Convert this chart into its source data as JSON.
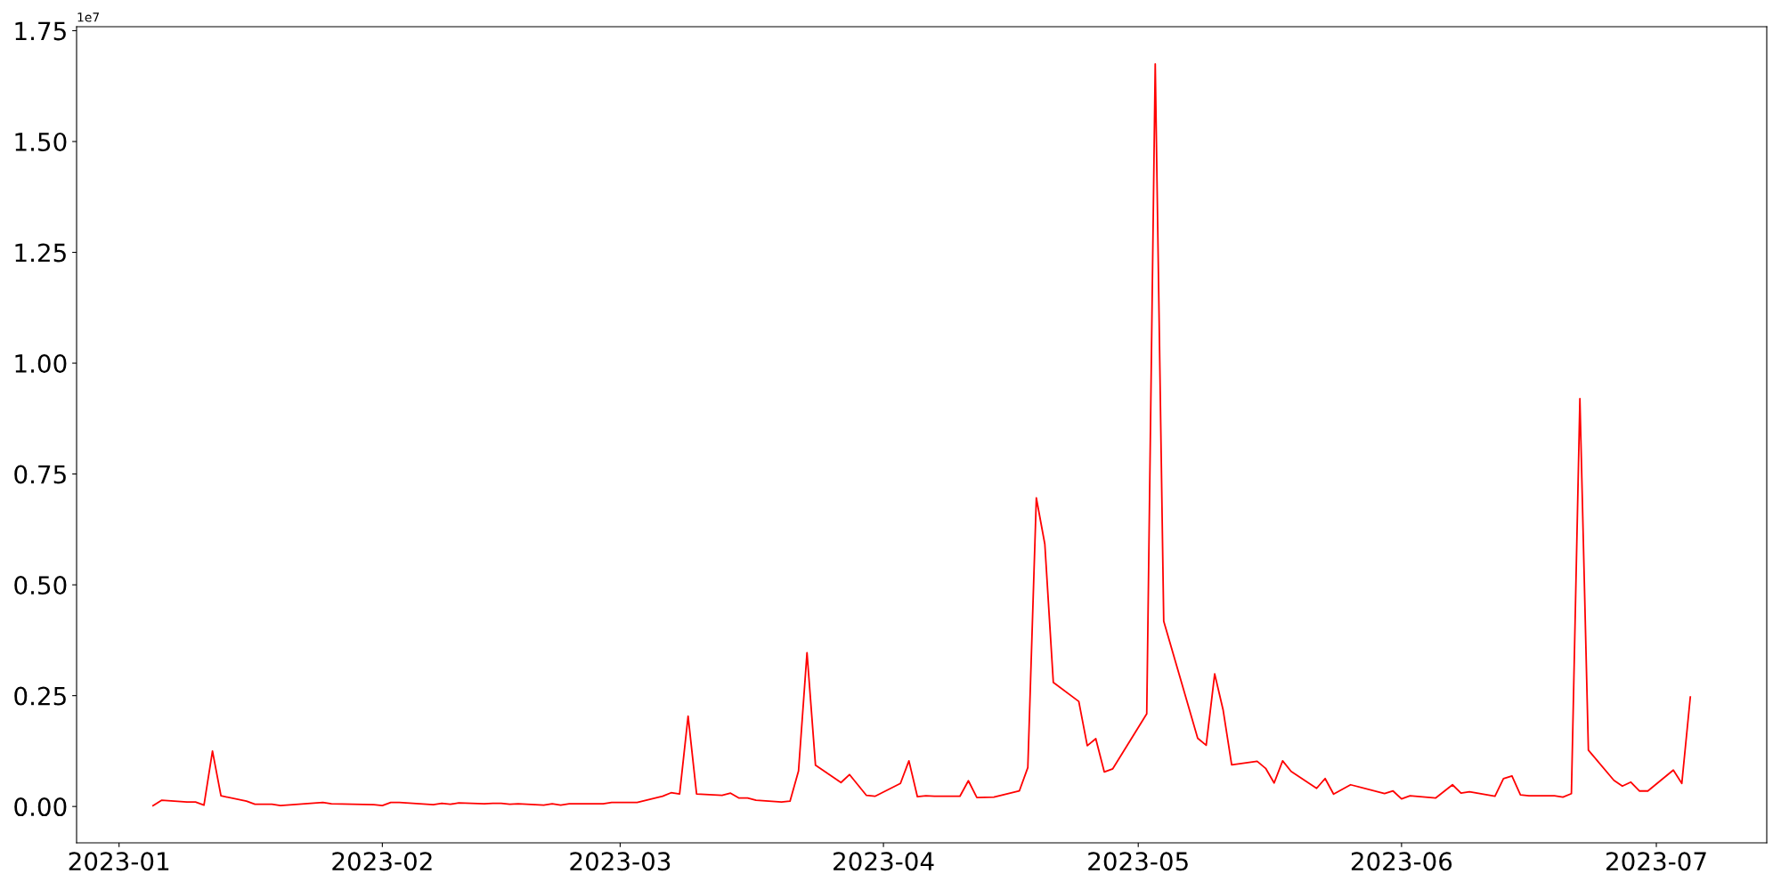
{
  "chart_data": {
    "type": "line",
    "x": [
      "2023-01-05",
      "2023-01-06",
      "2023-01-09",
      "2023-01-10",
      "2023-01-11",
      "2023-01-12",
      "2023-01-13",
      "2023-01-16",
      "2023-01-17",
      "2023-01-19",
      "2023-01-20",
      "2023-01-25",
      "2023-01-26",
      "2023-01-31",
      "2023-02-01",
      "2023-02-02",
      "2023-02-03",
      "2023-02-07",
      "2023-02-08",
      "2023-02-09",
      "2023-02-10",
      "2023-02-13",
      "2023-02-14",
      "2023-02-15",
      "2023-02-16",
      "2023-02-17",
      "2023-02-20",
      "2023-02-21",
      "2023-02-22",
      "2023-02-23",
      "2023-02-24",
      "2023-02-27",
      "2023-02-28",
      "2023-03-03",
      "2023-03-06",
      "2023-03-07",
      "2023-03-08",
      "2023-03-09",
      "2023-03-10",
      "2023-03-13",
      "2023-03-14",
      "2023-03-15",
      "2023-03-16",
      "2023-03-17",
      "2023-03-20",
      "2023-03-21",
      "2023-03-22",
      "2023-03-23",
      "2023-03-24",
      "2023-03-27",
      "2023-03-28",
      "2023-03-30",
      "2023-03-31",
      "2023-04-03",
      "2023-04-04",
      "2023-04-05",
      "2023-04-06",
      "2023-04-07",
      "2023-04-10",
      "2023-04-11",
      "2023-04-12",
      "2023-04-14",
      "2023-04-17",
      "2023-04-18",
      "2023-04-19",
      "2023-04-20",
      "2023-04-21",
      "2023-04-24",
      "2023-04-25",
      "2023-04-26",
      "2023-04-27",
      "2023-04-28",
      "2023-05-02",
      "2023-05-03",
      "2023-05-04",
      "2023-05-08",
      "2023-05-09",
      "2023-05-10",
      "2023-05-11",
      "2023-05-12",
      "2023-05-15",
      "2023-05-16",
      "2023-05-17",
      "2023-05-18",
      "2023-05-19",
      "2023-05-22",
      "2023-05-23",
      "2023-05-24",
      "2023-05-26",
      "2023-05-30",
      "2023-05-31",
      "2023-06-01",
      "2023-06-02",
      "2023-06-05",
      "2023-06-07",
      "2023-06-08",
      "2023-06-09",
      "2023-06-12",
      "2023-06-13",
      "2023-06-14",
      "2023-06-15",
      "2023-06-16",
      "2023-06-19",
      "2023-06-20",
      "2023-06-21",
      "2023-06-22",
      "2023-06-23",
      "2023-06-26",
      "2023-06-27",
      "2023-06-28",
      "2023-06-29",
      "2023-06-30",
      "2023-07-03",
      "2023-07-04",
      "2023-07-05"
    ],
    "series": [
      {
        "color": "#ff0000",
        "values": [
          0.002,
          0.014,
          0.01,
          0.01,
          0.003,
          0.125,
          0.024,
          0.012,
          0.005,
          0.005,
          0.002,
          0.009,
          0.006,
          0.004,
          0.002,
          0.009,
          0.009,
          0.004,
          0.007,
          0.005,
          0.008,
          0.006,
          0.007,
          0.007,
          0.005,
          0.006,
          0.003,
          0.006,
          0.003,
          0.006,
          0.006,
          0.006,
          0.009,
          0.009,
          0.023,
          0.031,
          0.028,
          0.204,
          0.028,
          0.025,
          0.03,
          0.019,
          0.019,
          0.014,
          0.01,
          0.012,
          0.08,
          0.347,
          0.093,
          0.054,
          0.072,
          0.025,
          0.023,
          0.052,
          0.103,
          0.022,
          0.024,
          0.023,
          0.023,
          0.058,
          0.02,
          0.021,
          0.035,
          0.088,
          0.696,
          0.592,
          0.28,
          0.237,
          0.137,
          0.153,
          0.078,
          0.085,
          0.209,
          1.675,
          0.418,
          0.154,
          0.138,
          0.299,
          0.217,
          0.094,
          0.102,
          0.086,
          0.053,
          0.103,
          0.079,
          0.041,
          0.063,
          0.028,
          0.049,
          0.029,
          0.035,
          0.017,
          0.024,
          0.019,
          0.049,
          0.03,
          0.033,
          0.023,
          0.063,
          0.069,
          0.026,
          0.024,
          0.024,
          0.021,
          0.029,
          0.92,
          0.127,
          0.059,
          0.046,
          0.055,
          0.035,
          0.035,
          0.082,
          0.052,
          0.247
        ]
      }
    ],
    "xlim": [
      "2022-12-27",
      "2023-07-14"
    ],
    "xticks": [
      {
        "value": "2023-01-01",
        "label": "2023-01"
      },
      {
        "value": "2023-02-01",
        "label": "2023-02"
      },
      {
        "value": "2023-03-01",
        "label": "2023-03"
      },
      {
        "value": "2023-04-01",
        "label": "2023-04"
      },
      {
        "value": "2023-05-01",
        "label": "2023-05"
      },
      {
        "value": "2023-06-01",
        "label": "2023-06"
      },
      {
        "value": "2023-07-01",
        "label": "2023-07"
      }
    ],
    "ylim": [
      -0.082,
      1.759
    ],
    "yticks": [
      {
        "value": 0,
        "label": "0.00"
      },
      0.25,
      {
        "value": 0.5,
        "label": "0.50"
      },
      0.75,
      {
        "value": 1,
        "label": "1.00"
      },
      1.25,
      {
        "value": 1.5,
        "label": "1.50"
      },
      1.75
    ],
    "annotations": [
      "1e7"
    ],
    "grid": false,
    "marker": "none",
    "line_style": "solid"
  }
}
